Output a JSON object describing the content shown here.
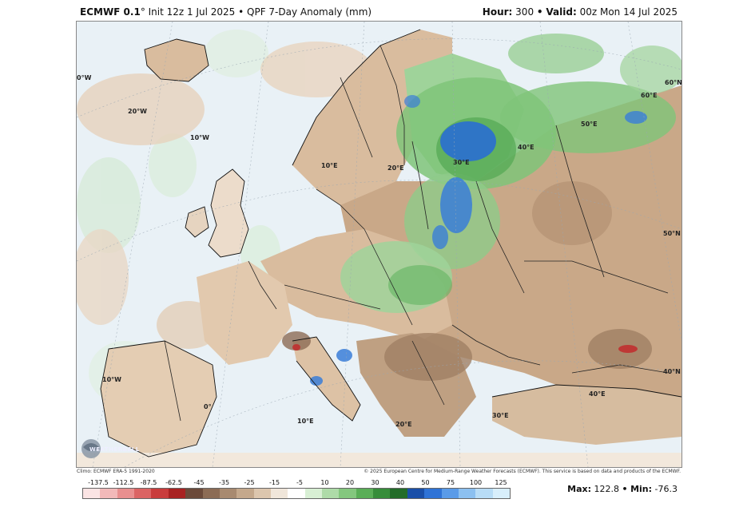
{
  "header": {
    "model": "ECMWF 0.1",
    "init": "° Init 12z 1 Jul 2025 • QPF 7-Day Anomaly (mm)",
    "hour_label": "Hour:",
    "hour_value": "300",
    "valid_label": "Valid:",
    "valid_value": "00z Mon 14 Jul 2025",
    "separator": "•"
  },
  "map": {
    "projection_labels": [
      "0°W",
      "20°W",
      "10°W",
      "10°E",
      "20°E",
      "30°E",
      "40°E",
      "50°E",
      "60°E",
      "60°N",
      "50°N",
      "40°N",
      "10°W",
      "0°",
      "10°E",
      "20°E",
      "30°E",
      "40°E"
    ],
    "colors": {
      "ocean": "#e9f1f6",
      "dry_light": "#d9bc9e",
      "dry_dark": "#a08064",
      "wet_light": "#9fd39a",
      "wet_mid": "#52a852",
      "wet_heavy": "#2a6fd1",
      "extreme_dry": "#c03030",
      "border": "#222222"
    },
    "logo_text": "WEATHERBELL"
  },
  "footer": {
    "climo": "Climo: ECMWF ERA-5 1991-2020",
    "copyright": "© 2025 European Centre for Medium-Range Weather Forecasts (ECMWF). This service is based on data and products of the ECMWF."
  },
  "colorbar": {
    "ticks": [
      "-137.5",
      "-112.5",
      "-87.5",
      "-62.5",
      "-45",
      "-35",
      "-25",
      "-15",
      "-5",
      "10",
      "20",
      "30",
      "40",
      "50",
      "75",
      "100",
      "125"
    ],
    "swatches": [
      "#fbe4e4",
      "#f2b9b9",
      "#e88f8f",
      "#db6464",
      "#c93c3c",
      "#a82222",
      "#6b4a3a",
      "#8c6c55",
      "#a88a70",
      "#c4a88c",
      "#dcc6ae",
      "#f0e6da",
      "#ffffff",
      "#d8efd4",
      "#aedba8",
      "#84c77e",
      "#5aae57",
      "#378d3a",
      "#236c29",
      "#1a4fa8",
      "#2f73d6",
      "#5a9be8",
      "#8cc0f0",
      "#b8dcf6",
      "#d8eefb"
    ]
  },
  "stats": {
    "max_label": "Max:",
    "max_value": "122.8",
    "sep": "•",
    "min_label": "Min:",
    "min_value": "-76.3"
  }
}
